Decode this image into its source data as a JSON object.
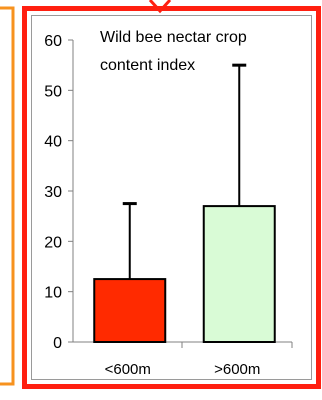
{
  "chart_data": {
    "type": "bar",
    "title": "Wild bee nectar crop content index",
    "title_lines": [
      "Wild bee nectar crop",
      "content index"
    ],
    "categories": [
      "<600m",
      ">600m"
    ],
    "values": [
      12.5,
      27
    ],
    "error_upper": [
      27.5,
      55
    ],
    "ylim": [
      0,
      60
    ],
    "yticks": [
      "0",
      "10",
      "20",
      "30",
      "40",
      "50",
      "60"
    ],
    "grid": false,
    "bar_colors": [
      "#ff2a00",
      "#d9fbd6"
    ]
  },
  "colors": {
    "frame_outer": "#ff1f10",
    "left_panel_border": "#f7921e",
    "bar_outline": "#000000",
    "error_bar": "#000000"
  }
}
